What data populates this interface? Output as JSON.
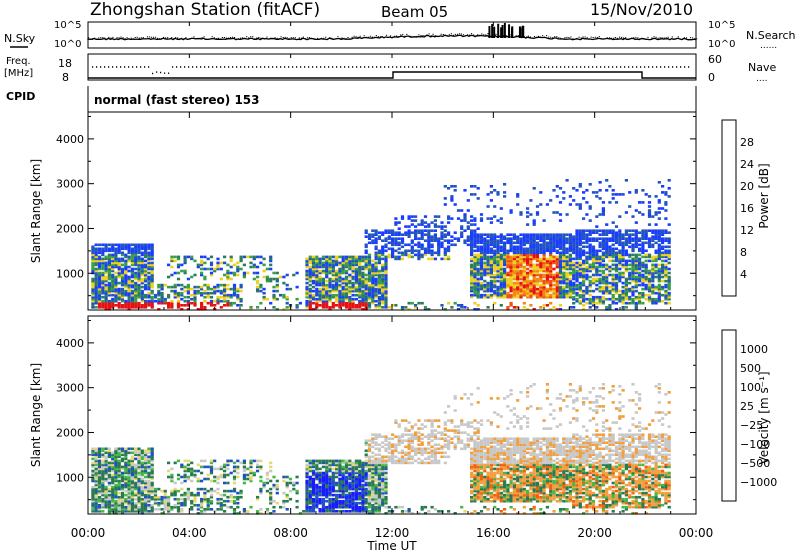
{
  "header": {
    "station": "Zhongshan Station (fitACF)",
    "beam": "Beam 05",
    "date": "15/Nov/2010"
  },
  "strip": {
    "nsky_label": "N.Sky",
    "nsearch_label": "N.Search",
    "noise_ticks_left": [
      "10^5",
      "10^0"
    ],
    "noise_ticks_right": [
      "10^5",
      "10^0"
    ],
    "freq_label_1": "Freq.",
    "freq_label_2": "[MHz]",
    "freq_ticks": [
      "18",
      "8"
    ],
    "nave_label": "Nave",
    "nave_ticks": [
      "60",
      "0"
    ],
    "cpid_label": "CPID",
    "cpid_text": "normal (fast stereo) 153",
    "dotted_symbol": "......",
    "nave_symbol": "...."
  },
  "colors": {
    "power": [
      "#1a3cff",
      "#2255c0",
      "#2e7d5a",
      "#3aa048",
      "#f0d020",
      "#f08a10",
      "#f05010",
      "#e81010"
    ],
    "velocity": [
      "#1a1aff",
      "#1e50c8",
      "#2a7a50",
      "#46b848",
      "#c8c8c8",
      "#e8d870",
      "#f0a040",
      "#f06010",
      "#e81010"
    ]
  },
  "chart_data": [
    {
      "type": "heatmap",
      "parameter": "power",
      "ylabel": "Slant Range [km]",
      "xlabel": "",
      "colorbar_label": "Power [dB]",
      "colorbar_ticks": [
        "4",
        "8",
        "12",
        "16",
        "20",
        "24",
        "28"
      ],
      "ylim": [
        180,
        4600
      ],
      "y_ticks": [
        "1000",
        "2000",
        "3000",
        "4000"
      ],
      "xlim": [
        0,
        24
      ],
      "x_ticks": [
        "00:00",
        "04:00",
        "08:00",
        "12:00",
        "16:00",
        "20:00",
        "00:00"
      ]
    },
    {
      "type": "heatmap",
      "parameter": "velocity",
      "ylabel": "Slant Range [km]",
      "xlabel": "Time UT",
      "colorbar_label": "Velocity [m s⁻¹]",
      "colorbar_ticks": [
        "1000",
        "500",
        "100",
        "25",
        "−25",
        "−100",
        "−500",
        "−1000"
      ],
      "ylim": [
        180,
        4600
      ],
      "y_ticks": [
        "1000",
        "2000",
        "3000",
        "4000"
      ],
      "xlim": [
        0,
        24
      ],
      "x_ticks": [
        "00:00",
        "04:00",
        "08:00",
        "12:00",
        "16:00",
        "20:00",
        "00:00"
      ]
    }
  ]
}
